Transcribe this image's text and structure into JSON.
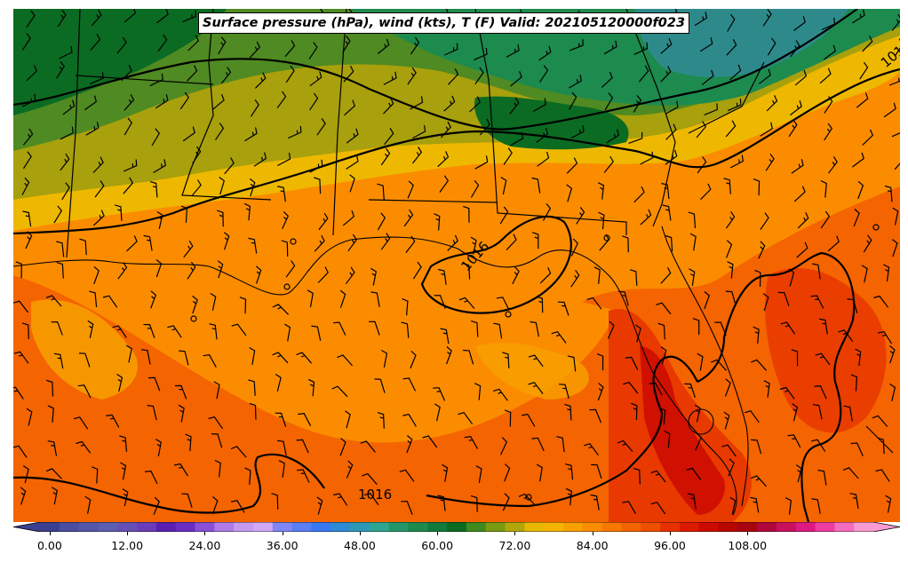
{
  "title": "Surface pressure (hPa), wind (kts), T (F) Valid: 202105120000f023",
  "isobar_labels": [
    "1016",
    "1016",
    "101"
  ],
  "colorbar": {
    "ticks": [
      "0.00",
      "12.00",
      "24.00",
      "36.00",
      "48.00",
      "60.00",
      "72.00",
      "84.00",
      "96.00",
      "108.00"
    ],
    "colors": [
      "#3b3f8f",
      "#4a4e9e",
      "#5656a8",
      "#5e5eb0",
      "#6650b5",
      "#6a3db8",
      "#5a1fb0",
      "#6b2cc4",
      "#8a4fd6",
      "#b07ae6",
      "#c59af0",
      "#d1a8f5",
      "#7f86f5",
      "#5a7ff2",
      "#3a78f0",
      "#2f8ad6",
      "#2e98b8",
      "#2ea592",
      "#25966a",
      "#1d8a4e",
      "#127a3a",
      "#0b6b22",
      "#3e8a1c",
      "#7a9a12",
      "#b0a70a",
      "#e8b800",
      "#f5b400",
      "#f7a000",
      "#fb8c00",
      "#fa7800",
      "#f46400",
      "#ee4e00",
      "#e63200",
      "#dc1a00",
      "#cc0a00",
      "#b80600",
      "#a80410",
      "#b0083c",
      "#c8105e",
      "#de1a82",
      "#ee3ca0",
      "#f56cbc",
      "#f99ad2"
    ]
  },
  "palette": {
    "dark_green": "#0b6b22",
    "green": "#25966a",
    "olive": "#a8a00c",
    "yellow": "#eeb800",
    "orange": "#fb8c00",
    "deep_orange": "#f46400",
    "red_orange": "#e83a00",
    "red": "#d01000",
    "teal": "#2e8a8a"
  }
}
